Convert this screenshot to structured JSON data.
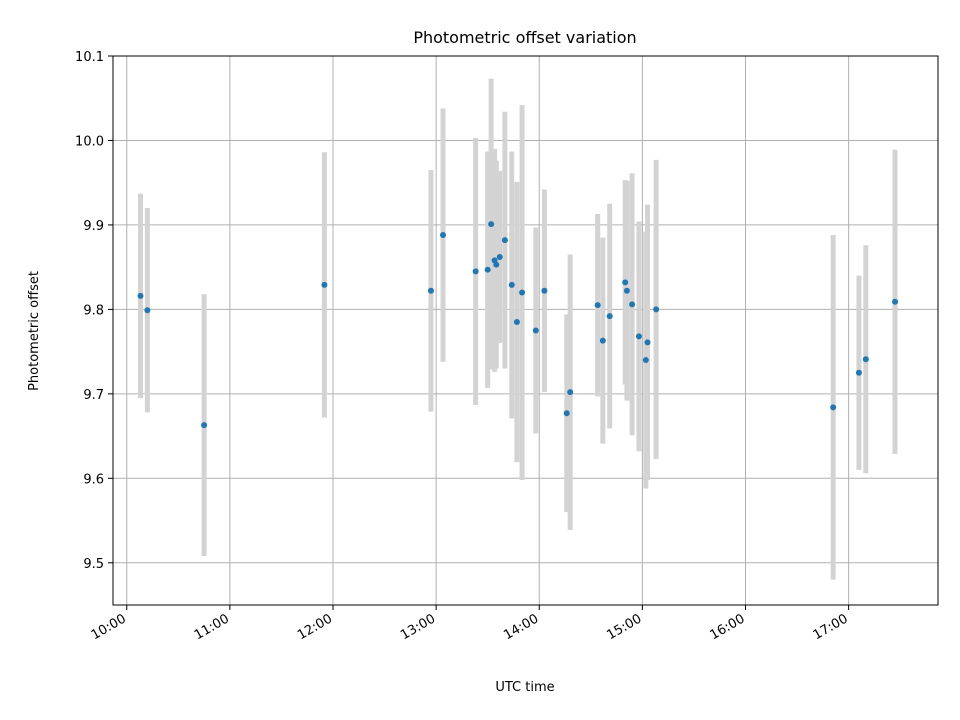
{
  "chart_data": {
    "type": "scatter",
    "title": "Photometric offset variation",
    "xlabel": "UTC time",
    "ylabel": "Photometric offset",
    "x_ticks": [
      "10:00",
      "11:00",
      "12:00",
      "13:00",
      "14:00",
      "15:00",
      "16:00",
      "17:00"
    ],
    "y_ticks": [
      "9.5",
      "9.6",
      "9.7",
      "9.8",
      "9.9",
      "10.0",
      "10.1"
    ],
    "xlim": [
      "09:52",
      "17:52"
    ],
    "ylim": [
      9.45,
      10.1
    ],
    "grid": true,
    "point_color": "#1f77b4",
    "errorbar_color": "#d3d3d3",
    "points": [
      {
        "x": "10:08",
        "y": 9.816,
        "err": 0.121
      },
      {
        "x": "10:12",
        "y": 9.799,
        "err": 0.121
      },
      {
        "x": "10:45",
        "y": 9.663,
        "err": 0.155
      },
      {
        "x": "11:55",
        "y": 9.829,
        "err": 0.157
      },
      {
        "x": "12:57",
        "y": 9.822,
        "err": 0.143
      },
      {
        "x": "13:04",
        "y": 9.888,
        "err": 0.15
      },
      {
        "x": "13:23",
        "y": 9.845,
        "err": 0.158
      },
      {
        "x": "13:30",
        "y": 9.847,
        "err": 0.14
      },
      {
        "x": "13:32",
        "y": 9.901,
        "err": 0.172
      },
      {
        "x": "13:34",
        "y": 9.858,
        "err": 0.132
      },
      {
        "x": "13:35",
        "y": 9.853,
        "err": 0.123
      },
      {
        "x": "13:37",
        "y": 9.862,
        "err": 0.102
      },
      {
        "x": "13:40",
        "y": 9.882,
        "err": 0.152
      },
      {
        "x": "13:44",
        "y": 9.829,
        "err": 0.158
      },
      {
        "x": "13:47",
        "y": 9.785,
        "err": 0.166
      },
      {
        "x": "13:50",
        "y": 9.82,
        "err": 0.222
      },
      {
        "x": "13:58",
        "y": 9.775,
        "err": 0.122
      },
      {
        "x": "14:03",
        "y": 9.822,
        "err": 0.12
      },
      {
        "x": "14:16",
        "y": 9.677,
        "err": 0.117
      },
      {
        "x": "14:18",
        "y": 9.702,
        "err": 0.163
      },
      {
        "x": "14:34",
        "y": 9.805,
        "err": 0.108
      },
      {
        "x": "14:37",
        "y": 9.763,
        "err": 0.122
      },
      {
        "x": "14:41",
        "y": 9.792,
        "err": 0.133
      },
      {
        "x": "14:50",
        "y": 9.832,
        "err": 0.121
      },
      {
        "x": "14:51",
        "y": 9.822,
        "err": 0.13
      },
      {
        "x": "14:54",
        "y": 9.806,
        "err": 0.155
      },
      {
        "x": "14:58",
        "y": 9.768,
        "err": 0.136
      },
      {
        "x": "15:02",
        "y": 9.74,
        "err": 0.152
      },
      {
        "x": "15:03",
        "y": 9.761,
        "err": 0.163
      },
      {
        "x": "15:08",
        "y": 9.8,
        "err": 0.177
      },
      {
        "x": "16:51",
        "y": 9.684,
        "err": 0.204
      },
      {
        "x": "17:06",
        "y": 9.725,
        "err": 0.115
      },
      {
        "x": "17:10",
        "y": 9.741,
        "err": 0.135
      },
      {
        "x": "17:27",
        "y": 9.809,
        "err": 0.18
      }
    ]
  }
}
